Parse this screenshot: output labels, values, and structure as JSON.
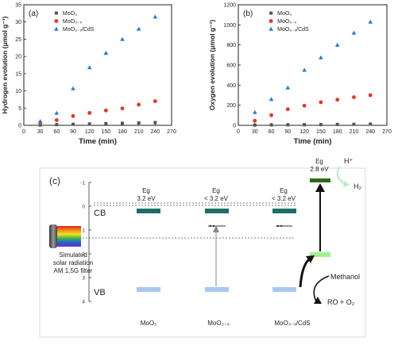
{
  "chart_data": [
    {
      "type": "scatter",
      "panel_label": "(a)",
      "xlabel": "Time (min)",
      "ylabel": "Hydrogen evolution (μmol g⁻¹)",
      "xlim": [
        0,
        270
      ],
      "ylim": [
        0,
        35
      ],
      "x_ticks": [
        0,
        30,
        60,
        90,
        120,
        150,
        180,
        210,
        240,
        270
      ],
      "y_ticks": [
        0,
        5,
        10,
        15,
        20,
        25,
        30,
        35
      ],
      "legend_position": "top-left",
      "x": [
        30,
        60,
        90,
        120,
        150,
        180,
        210,
        240
      ],
      "series": [
        {
          "name": "MoO₃",
          "marker": "square",
          "color": "#555555",
          "values": [
            0.1,
            0.2,
            0.3,
            0.4,
            0.5,
            0.6,
            0.7,
            0.8
          ]
        },
        {
          "name": "MoO₃₋ₓ",
          "marker": "circle",
          "color": "#e8322a",
          "values": [
            0.8,
            1.5,
            2.7,
            3.6,
            4.3,
            4.9,
            6.0,
            7.0
          ]
        },
        {
          "name": "MoO₃₋ₓ/CdS",
          "marker": "triangle",
          "color": "#1f7fd0",
          "values": [
            1.2,
            3.6,
            10.7,
            16.8,
            21.0,
            25.0,
            28.0,
            31.5
          ]
        }
      ]
    },
    {
      "type": "scatter",
      "panel_label": "(b)",
      "xlabel": "Time (min)",
      "ylabel": "Oxygen evolution (μmol g⁻¹)",
      "xlim": [
        0,
        270
      ],
      "ylim": [
        0,
        1200
      ],
      "x_ticks": [
        0,
        30,
        60,
        90,
        120,
        150,
        180,
        210,
        240,
        270
      ],
      "y_ticks": [
        0,
        200,
        400,
        600,
        800,
        1000,
        1200
      ],
      "legend_position": "top-left",
      "x": [
        30,
        60,
        90,
        120,
        150,
        180,
        210,
        240
      ],
      "series": [
        {
          "name": "MoO₃",
          "marker": "square",
          "color": "#555555",
          "values": [
            2,
            4,
            5,
            6,
            7,
            9,
            10,
            12
          ]
        },
        {
          "name": "MoO₃₋ₓ",
          "marker": "circle",
          "color": "#e8322a",
          "values": [
            45,
            100,
            160,
            195,
            230,
            255,
            280,
            300
          ]
        },
        {
          "name": "MoO₃₋ₓ/CdS",
          "marker": "triangle",
          "color": "#1f7fd0",
          "values": [
            130,
            260,
            375,
            550,
            675,
            800,
            920,
            1030
          ]
        }
      ]
    }
  ],
  "diagram": {
    "panel_label": "(c)",
    "y_ticks": [
      "-1",
      "0",
      "1",
      "2",
      "3",
      "4"
    ],
    "cb_label": "CB",
    "vb_label": "VB",
    "source_lines": [
      "Simulated",
      "solar radiation",
      "AM 1.5G filter"
    ],
    "materials": [
      {
        "label": "MoO₃",
        "eg_title": "Eg",
        "eg_value": "3.2 eV"
      },
      {
        "label": "MoO₃₋ₓ",
        "eg_title": "Eg",
        "eg_value": "< 3.2 eV"
      },
      {
        "label": "MoO₃₋ₓ/CdS",
        "eg_title": "Eg",
        "eg_value": "< 3.2 eV"
      }
    ],
    "cds": {
      "eg_title": "Eg",
      "eg_value": "2.8 eV"
    },
    "h_plus": "H⁺",
    "h2": "H₂",
    "methanol": "Methanol",
    "products": "RO + O₂",
    "colors": {
      "cb": "#1d6f63",
      "vb": "#a9c8f0",
      "cds_cb": "#2c6b12",
      "cds_vb": "#a3ef8f",
      "h_arrow": "#b6ecc2"
    }
  }
}
